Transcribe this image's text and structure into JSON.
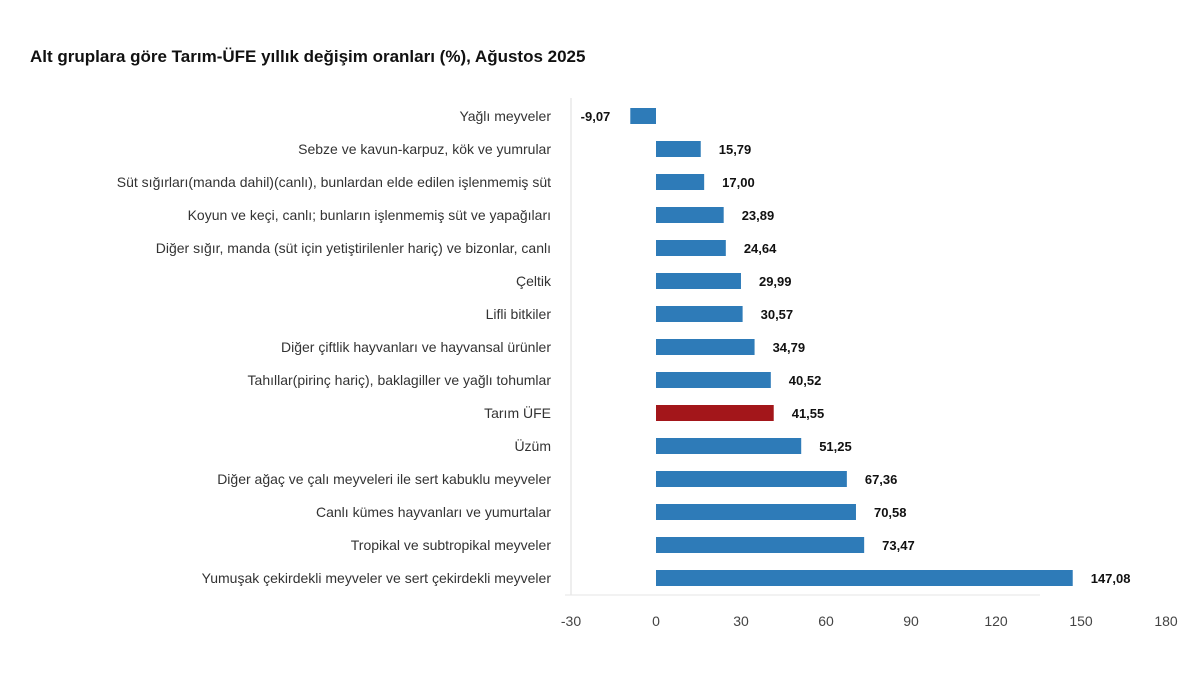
{
  "chart_data": {
    "type": "bar",
    "orientation": "horizontal",
    "title": "Alt gruplara göre Tarım-ÜFE yıllık değişim oranları (%), Ağustos 2025",
    "categories": [
      "Yağlı meyveler",
      "Sebze ve kavun-karpuz, kök ve yumrular",
      "Süt sığırları(manda dahil)(canlı), bunlardan elde edilen işlenmemiş süt",
      "Koyun ve keçi, canlı; bunların işlenmemiş süt ve yapağıları",
      "Diğer sığır, manda (süt için yetiştirilenler hariç) ve bizonlar, canlı",
      "Çeltik",
      "Lifli bitkiler",
      "Diğer çiftlik hayvanları ve hayvansal ürünler",
      "Tahıllar(pirinç hariç), baklagiller ve yağlı tohumlar",
      "Tarım ÜFE",
      "Üzüm",
      "Diğer ağaç ve çalı meyveleri ile sert kabuklu meyveler",
      "Canlı kümes hayvanları ve yumurtalar",
      "Tropikal ve subtropikal meyveler",
      "Yumuşak çekirdekli meyveler ve sert çekirdekli meyveler"
    ],
    "values": [
      -9.07,
      15.79,
      17.0,
      23.89,
      24.64,
      29.99,
      30.57,
      34.79,
      40.52,
      41.55,
      51.25,
      67.36,
      70.58,
      73.47,
      147.08
    ],
    "value_labels": [
      "-9,07",
      "15,79",
      "17,00",
      "23,89",
      "24,64",
      "29,99",
      "30,57",
      "34,79",
      "40,52",
      "41,55",
      "51,25",
      "67,36",
      "70,58",
      "73,47",
      "147,08"
    ],
    "highlight": "Tarım ÜFE",
    "xlim": [
      -30,
      180
    ],
    "xticks": [
      "-30",
      "0",
      "30",
      "60",
      "90",
      "120",
      "150",
      "180"
    ],
    "xtick_values": [
      -30,
      0,
      30,
      60,
      90,
      120,
      150,
      180
    ],
    "grid": false,
    "legend": "none",
    "colors": {
      "bar": "#2e7bb8",
      "highlight": "#a3161a"
    }
  }
}
